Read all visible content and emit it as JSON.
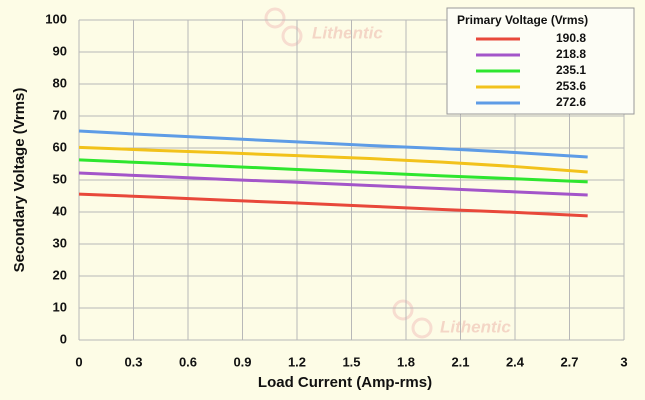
{
  "chart_data": {
    "type": "line",
    "x_label": "Load Current (Amp-rms)",
    "y_label": "Secondary Voltage (Vrms)",
    "legend_title": "Primary Voltage (Vrms)",
    "watermark": "Lithentic",
    "x": [
      0,
      0.4,
      0.8,
      1.2,
      1.6,
      2.0,
      2.4,
      2.8
    ],
    "series": [
      {
        "name": "190.8",
        "color": "#e8483a",
        "values": [
          45.6,
          44.7,
          43.7,
          42.8,
          41.8,
          40.8,
          39.9,
          38.8
        ]
      },
      {
        "name": "218.8",
        "color": "#a355c9",
        "values": [
          52.2,
          51.2,
          50.2,
          49.3,
          48.3,
          47.3,
          46.3,
          45.3
        ]
      },
      {
        "name": "235.1",
        "color": "#2ee62e",
        "values": [
          56.3,
          55.3,
          54.3,
          53.3,
          52.3,
          51.3,
          50.4,
          49.4
        ]
      },
      {
        "name": "253.6",
        "color": "#f2c21b",
        "values": [
          60.2,
          59.3,
          58.5,
          57.6,
          56.7,
          55.6,
          54.2,
          52.5
        ]
      },
      {
        "name": "272.6",
        "color": "#5e9ce6",
        "values": [
          65.3,
          64.1,
          63.0,
          61.9,
          60.8,
          59.8,
          58.6,
          57.2
        ]
      }
    ],
    "xlim": [
      0,
      3
    ],
    "xticks": [
      0,
      0.3,
      0.6,
      0.9,
      1.2,
      1.5,
      1.8,
      2.1,
      2.4,
      2.7,
      3
    ],
    "ylim": [
      0,
      100
    ],
    "yticks": [
      0,
      10,
      20,
      30,
      40,
      50,
      60,
      70,
      80,
      90,
      100
    ],
    "grid": true,
    "legend": "upper right"
  }
}
